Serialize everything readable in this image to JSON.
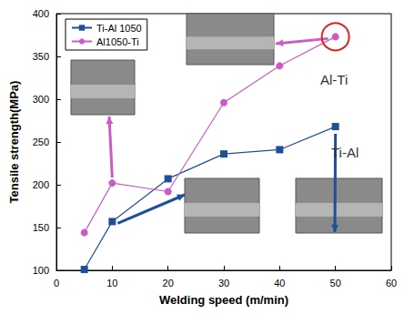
{
  "chart_data": {
    "type": "line",
    "x_label": "Welding speed (m/min)",
    "y_label": "Tensile strength(MPa)",
    "x": [
      5,
      10,
      20,
      30,
      40,
      50
    ],
    "series": [
      {
        "name": "Ti-Al 1050",
        "color": "#1f4e9a",
        "marker": "square",
        "line_style": "solid",
        "values": [
          101,
          157,
          207,
          236,
          241,
          268
        ]
      },
      {
        "name": "Al1050-Ti",
        "color": "#cc5cc4",
        "marker": "circle",
        "line_style": "solid",
        "values": [
          144,
          202,
          192,
          296,
          339,
          373
        ]
      }
    ],
    "xlim": [
      0,
      60
    ],
    "xticks": [
      0,
      10,
      20,
      30,
      40,
      50,
      60
    ],
    "ylim": [
      100,
      400
    ],
    "yticks": [
      100,
      150,
      200,
      250,
      300,
      350,
      400
    ],
    "grid": false,
    "legend": "upper left",
    "annotations": [
      "Al-Ti",
      "Ti-Al"
    ]
  }
}
